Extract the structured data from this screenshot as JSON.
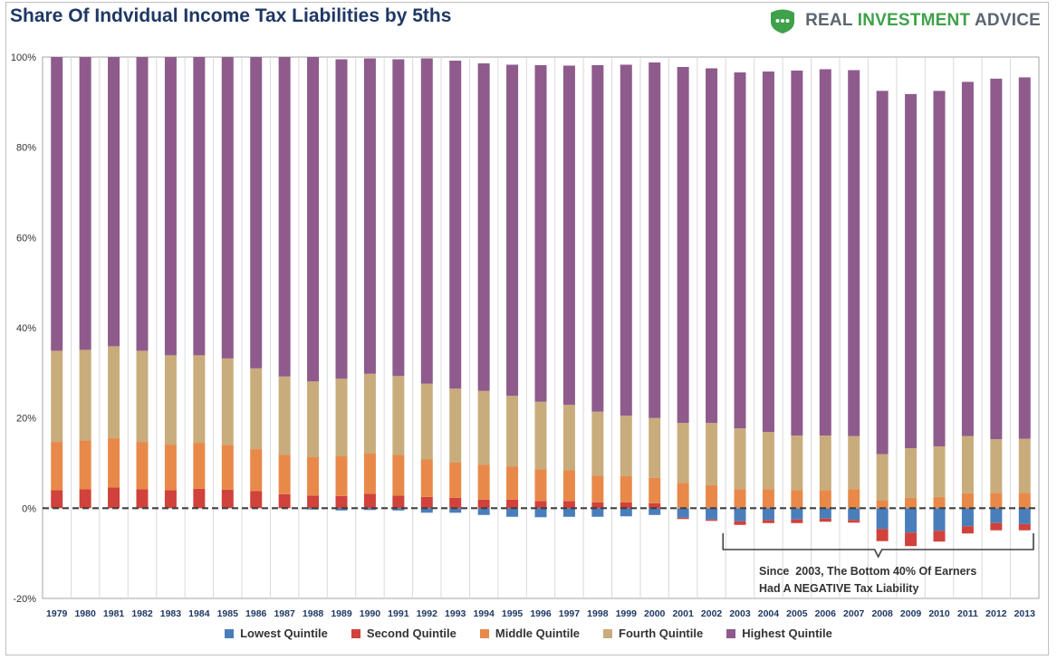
{
  "brand": {
    "name": "REAL INVESTMENT ADVICE",
    "prefix": "REAL ",
    "highlight": "INVESTMENT",
    "suffix": " ADVICE",
    "logo_icon": "shield-dots-icon",
    "logo_color": "#3fa14a"
  },
  "chart_data": {
    "type": "bar",
    "stacked": true,
    "title": "Share Of Indvidual Income Tax Liabilities by 5ths",
    "xlabel": "",
    "ylabel": "",
    "ylim": [
      -20,
      100
    ],
    "yticks": [
      -20,
      0,
      20,
      40,
      60,
      80,
      100
    ],
    "ytick_suffix": "%",
    "grid": {
      "vertical": true,
      "horizontal": false
    },
    "legend_position": "bottom",
    "zero_line": "dashed",
    "categories": [
      "1979",
      "1980",
      "1981",
      "1982",
      "1983",
      "1984",
      "1985",
      "1986",
      "1987",
      "1988",
      "1989",
      "1990",
      "1991",
      "1992",
      "1993",
      "1994",
      "1995",
      "1996",
      "1997",
      "1998",
      "1999",
      "2000",
      "2001",
      "2002",
      "2003",
      "2004",
      "2005",
      "2006",
      "2007",
      "2008",
      "2009",
      "2010",
      "2011",
      "2012",
      "2013"
    ],
    "series": [
      {
        "name": "Lowest Quintile",
        "color": "#4a7ebb",
        "values": [
          0,
          0,
          0,
          0,
          0,
          0,
          0,
          0,
          0,
          -0.3,
          -0.5,
          -0.4,
          -0.5,
          -1.0,
          -1.0,
          -1.5,
          -1.9,
          -2.0,
          -1.9,
          -1.9,
          -1.8,
          -1.5,
          -2.1,
          -2.5,
          -2.9,
          -2.6,
          -2.5,
          -2.3,
          -2.6,
          -4.6,
          -5.4,
          -5.0,
          -4.0,
          -3.3,
          -3.5
        ]
      },
      {
        "name": "Second Quintile",
        "color": "#d0423b",
        "values": [
          4.0,
          4.2,
          4.6,
          4.2,
          4.0,
          4.3,
          4.1,
          3.8,
          3.1,
          2.8,
          2.7,
          3.2,
          2.8,
          2.5,
          2.3,
          1.9,
          1.9,
          1.6,
          1.6,
          1.3,
          1.3,
          1.1,
          -0.3,
          -0.3,
          -0.8,
          -0.7,
          -0.8,
          -0.7,
          -0.6,
          -2.7,
          -3.0,
          -2.4,
          -1.6,
          -1.6,
          -1.4
        ]
      },
      {
        "name": "Middle Quintile",
        "color": "#e8894a",
        "values": [
          10.7,
          10.8,
          10.9,
          10.5,
          10.1,
          10.2,
          9.9,
          9.3,
          8.7,
          8.5,
          8.8,
          8.9,
          9.0,
          8.3,
          7.8,
          7.7,
          7.3,
          7.0,
          6.8,
          5.9,
          5.8,
          5.6,
          5.6,
          5.1,
          4.2,
          4.2,
          4.0,
          4.0,
          4.2,
          1.8,
          2.3,
          2.5,
          3.3,
          3.4,
          3.4
        ]
      },
      {
        "name": "Fourth Quintile",
        "color": "#c9ac7c",
        "values": [
          20.2,
          20.1,
          20.4,
          20.2,
          19.8,
          19.4,
          19.2,
          17.9,
          17.4,
          16.8,
          17.2,
          17.7,
          17.5,
          16.8,
          16.4,
          16.4,
          15.7,
          15.0,
          14.5,
          14.2,
          13.4,
          13.3,
          13.3,
          13.8,
          13.5,
          12.7,
          12.1,
          12.1,
          11.8,
          10.2,
          11.0,
          11.2,
          12.7,
          11.9,
          12.0
        ]
      },
      {
        "name": "Highest Quintile",
        "color": "#8e5b8c",
        "values": [
          65.1,
          64.9,
          64.1,
          65.1,
          66.1,
          66.1,
          66.8,
          69.0,
          70.8,
          71.9,
          70.8,
          69.9,
          70.2,
          72.1,
          72.7,
          72.6,
          73.4,
          74.6,
          75.2,
          76.8,
          77.8,
          78.8,
          78.9,
          78.6,
          78.9,
          79.9,
          80.9,
          81.2,
          81.1,
          80.5,
          78.5,
          78.8,
          78.5,
          79.9,
          80.1
        ]
      }
    ],
    "annotation": {
      "lines": [
        "Since  2003, The Bottom 40% Of Earners",
        "Had A NEGATIVE Tax Liability"
      ],
      "from": "2003",
      "to": "2013"
    }
  }
}
